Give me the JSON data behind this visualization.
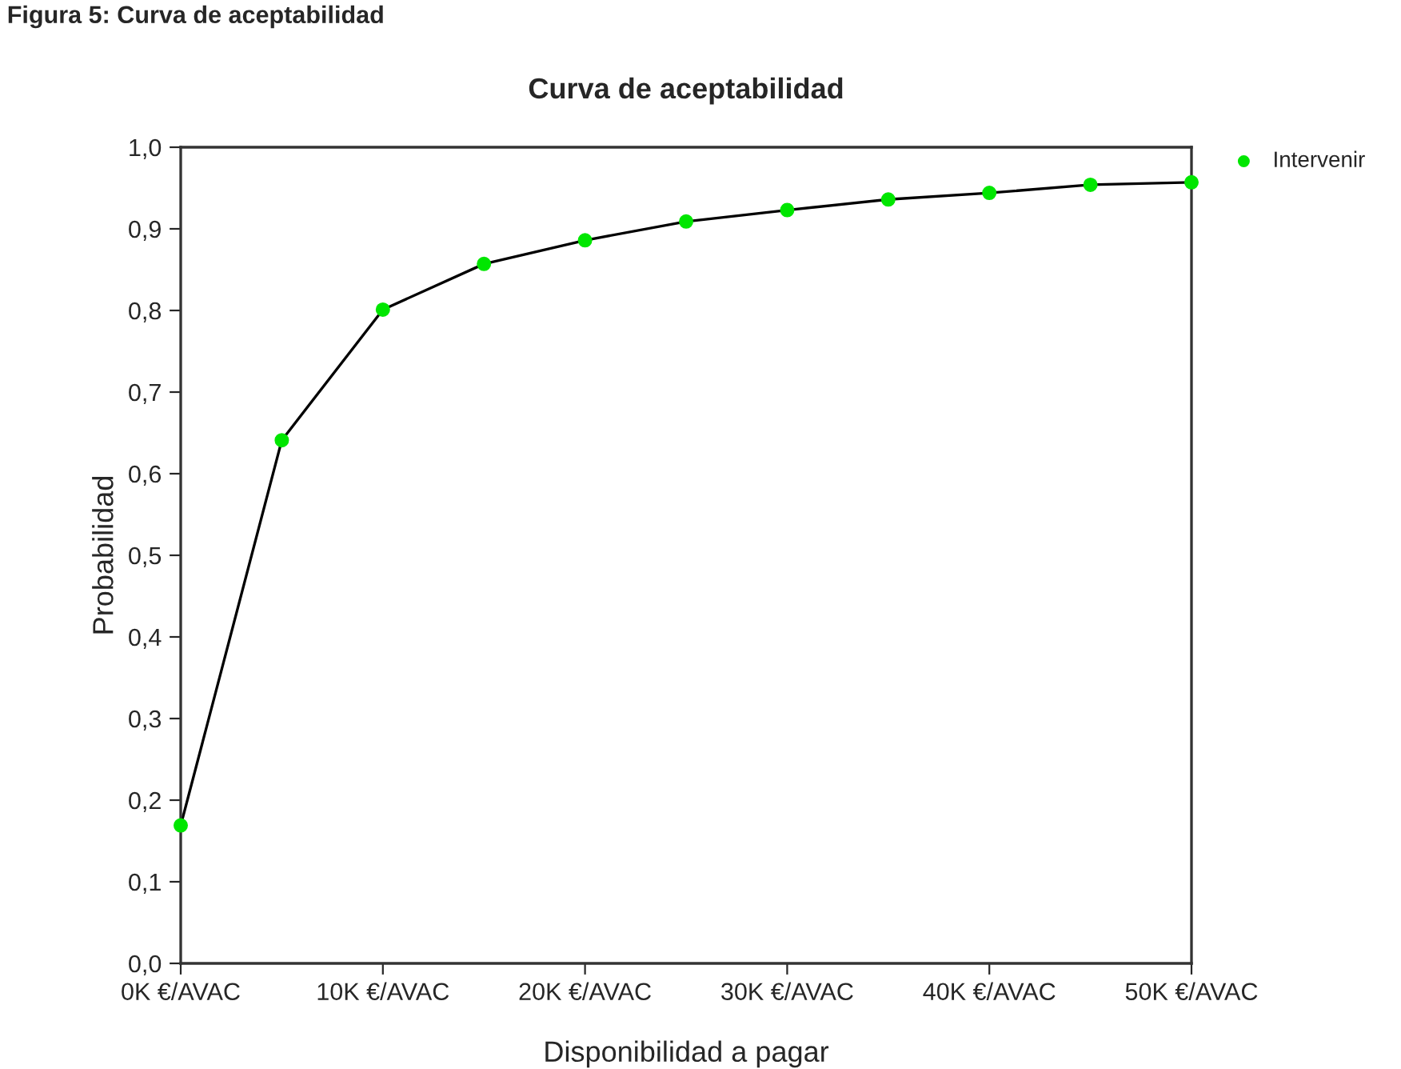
{
  "chart_data": {
    "type": "line",
    "title": "Curva de aceptabilidad",
    "xlabel": "Disponibilidad a pagar",
    "ylabel": "Probabilidad",
    "annotations": [
      "Figura 5: Curva de aceptabilidad"
    ],
    "x": [
      0,
      5000,
      10000,
      15000,
      20000,
      25000,
      30000,
      35000,
      40000,
      45000,
      50000
    ],
    "series": [
      {
        "name": "Intervenir",
        "color": "#00e600",
        "values": [
          0.169,
          0.641,
          0.801,
          0.857,
          0.886,
          0.909,
          0.923,
          0.936,
          0.944,
          0.954,
          0.957
        ]
      }
    ],
    "xlim": [
      0,
      50000
    ],
    "xticks": [
      {
        "value": 0,
        "label": "0K €/AVAC"
      },
      {
        "value": 10000,
        "label": "10K €/AVAC"
      },
      {
        "value": 20000,
        "label": "20K €/AVAC"
      },
      {
        "value": 30000,
        "label": "30K €/AVAC"
      },
      {
        "value": 40000,
        "label": "40K €/AVAC"
      },
      {
        "value": 50000,
        "label": "50K €/AVAC"
      }
    ],
    "ylim": [
      0,
      1
    ],
    "yticks": [
      {
        "value": 0,
        "label": "0,0"
      },
      {
        "value": 0.1,
        "label": "0,1"
      },
      {
        "value": 0.2,
        "label": "0,2"
      },
      {
        "value": 0.3,
        "label": "0,3"
      },
      {
        "value": 0.4,
        "label": "0,4"
      },
      {
        "value": 0.5,
        "label": "0,5"
      },
      {
        "value": 0.6,
        "label": "0,6"
      },
      {
        "value": 0.7,
        "label": "0,7"
      },
      {
        "value": 0.8,
        "label": "0,8"
      },
      {
        "value": 0.9,
        "label": "0,9"
      },
      {
        "value": 1,
        "label": "1,0"
      }
    ],
    "grid": false,
    "legend": "top right",
    "marker": "circle",
    "line_style": "solid"
  }
}
